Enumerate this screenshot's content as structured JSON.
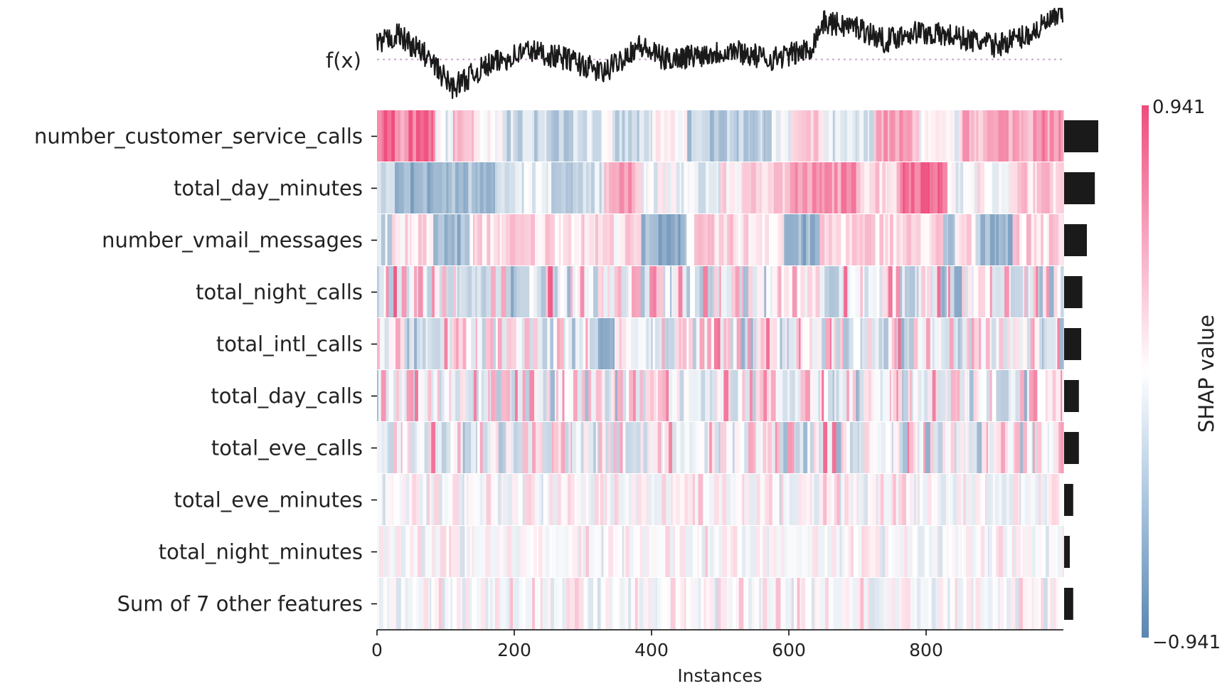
{
  "chart_data": {
    "type": "heatmap",
    "title": "",
    "xlabel": "Instances",
    "ylabel": "",
    "fx_label": "f(x)",
    "colorbar_label": "SHAP value",
    "colorbar_max_label": "0.941",
    "colorbar_min_label": "−0.941",
    "vmin": -0.941,
    "vmax": 0.941,
    "n_instances": 1000,
    "xlim": [
      0,
      1000
    ],
    "xticks": [
      0,
      200,
      400,
      600,
      800
    ],
    "xtick_labels": [
      "0",
      "200",
      "400",
      "600",
      "800"
    ],
    "grid": false,
    "colors": {
      "positive": "#ff0051",
      "negative": "#008bfb",
      "importance_bar": "#1a1a1a",
      "fx_line": "#1a1a1a",
      "fx_reference": "#c9a8c9"
    },
    "features": [
      {
        "name": "number_customer_service_calls",
        "mean_abs_shap": 0.3
      },
      {
        "name": "total_day_minutes",
        "mean_abs_shap": 0.27
      },
      {
        "name": "number_vmail_messages",
        "mean_abs_shap": 0.2
      },
      {
        "name": "total_night_calls",
        "mean_abs_shap": 0.16
      },
      {
        "name": "total_intl_calls",
        "mean_abs_shap": 0.15
      },
      {
        "name": "total_day_calls",
        "mean_abs_shap": 0.13
      },
      {
        "name": "total_eve_calls",
        "mean_abs_shap": 0.13
      },
      {
        "name": "total_eve_minutes",
        "mean_abs_shap": 0.08
      },
      {
        "name": "total_night_minutes",
        "mean_abs_shap": 0.05
      },
      {
        "name": "Sum of 7 other features",
        "mean_abs_shap": 0.08
      }
    ],
    "segments": [
      [
        [
          0,
          25,
          0.82
        ],
        [
          25,
          45,
          0.45
        ],
        [
          45,
          85,
          0.72
        ],
        [
          85,
          110,
          -0.1
        ],
        [
          110,
          140,
          0.35
        ],
        [
          140,
          185,
          -0.05
        ],
        [
          185,
          220,
          -0.3
        ],
        [
          220,
          280,
          -0.3
        ],
        [
          280,
          340,
          -0.15
        ],
        [
          340,
          400,
          -0.35
        ],
        [
          400,
          450,
          0.05
        ],
        [
          450,
          520,
          -0.4
        ],
        [
          520,
          570,
          -0.35
        ],
        [
          570,
          600,
          -0.15
        ],
        [
          600,
          650,
          0.2
        ],
        [
          650,
          720,
          -0.25
        ],
        [
          720,
          790,
          0.45
        ],
        [
          790,
          850,
          -0.05
        ],
        [
          850,
          900,
          0.4
        ],
        [
          900,
          960,
          0.5
        ],
        [
          960,
          1000,
          0.55
        ]
      ],
      [
        [
          0,
          20,
          -0.35
        ],
        [
          20,
          35,
          -0.75
        ],
        [
          35,
          80,
          -0.6
        ],
        [
          80,
          130,
          -0.55
        ],
        [
          130,
          170,
          -0.45
        ],
        [
          170,
          210,
          -0.3
        ],
        [
          210,
          250,
          -0.15
        ],
        [
          250,
          300,
          -0.5
        ],
        [
          300,
          330,
          -0.2
        ],
        [
          330,
          380,
          0.45
        ],
        [
          380,
          440,
          -0.05
        ],
        [
          440,
          500,
          -0.15
        ],
        [
          500,
          540,
          0.1
        ],
        [
          540,
          600,
          0.3
        ],
        [
          600,
          650,
          0.5
        ],
        [
          650,
          700,
          0.55
        ],
        [
          700,
          760,
          0.25
        ],
        [
          760,
          830,
          0.8
        ],
        [
          830,
          870,
          -0.1
        ],
        [
          870,
          930,
          0.05
        ],
        [
          930,
          1000,
          0.25
        ]
      ],
      [
        [
          0,
          20,
          -0.25
        ],
        [
          20,
          80,
          0.15
        ],
        [
          80,
          130,
          -0.55
        ],
        [
          130,
          330,
          0.2
        ],
        [
          330,
          380,
          0.15
        ],
        [
          380,
          450,
          -0.6
        ],
        [
          450,
          590,
          0.18
        ],
        [
          590,
          640,
          -0.6
        ],
        [
          640,
          820,
          0.2
        ],
        [
          820,
          840,
          -0.55
        ],
        [
          840,
          870,
          0.15
        ],
        [
          870,
          920,
          -0.5
        ],
        [
          920,
          1000,
          0.2
        ]
      ],
      [
        [
          0,
          1000,
          0.1,
          0.5
        ]
      ],
      [
        [
          0,
          320,
          0.05,
          0.45
        ],
        [
          320,
          345,
          -0.65
        ],
        [
          345,
          1000,
          0.08,
          0.45
        ]
      ],
      [
        [
          0,
          1000,
          0.05,
          0.45
        ]
      ],
      [
        [
          0,
          1000,
          0.08,
          0.45
        ]
      ],
      [
        [
          0,
          1000,
          0.04,
          0.22
        ]
      ],
      [
        [
          0,
          1000,
          0.03,
          0.18
        ]
      ],
      [
        [
          0,
          1000,
          0.04,
          0.2
        ]
      ]
    ],
    "fx_trend": [
      [
        0,
        0.6
      ],
      [
        30,
        0.72
      ],
      [
        70,
        0.5
      ],
      [
        110,
        0.15
      ],
      [
        160,
        0.38
      ],
      [
        220,
        0.55
      ],
      [
        280,
        0.45
      ],
      [
        330,
        0.3
      ],
      [
        380,
        0.6
      ],
      [
        420,
        0.45
      ],
      [
        470,
        0.5
      ],
      [
        520,
        0.55
      ],
      [
        570,
        0.45
      ],
      [
        630,
        0.55
      ],
      [
        650,
        0.85
      ],
      [
        700,
        0.8
      ],
      [
        740,
        0.65
      ],
      [
        780,
        0.75
      ],
      [
        840,
        0.7
      ],
      [
        900,
        0.6
      ],
      [
        950,
        0.72
      ],
      [
        1000,
        0.95
      ]
    ],
    "fx_reference_level": 0.45
  }
}
